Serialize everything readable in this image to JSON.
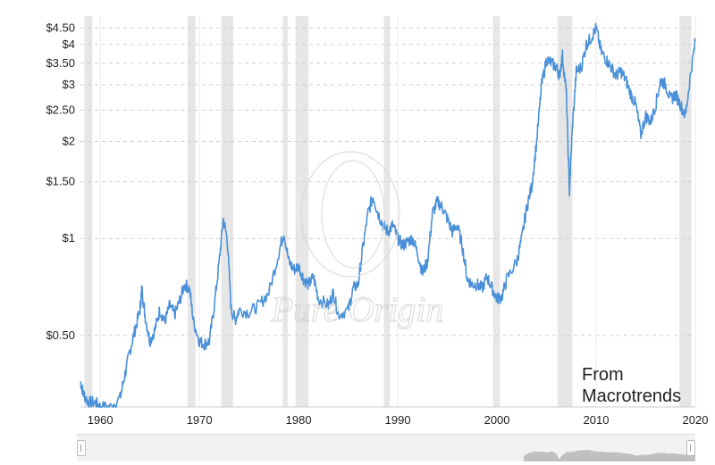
{
  "chart_data": {
    "type": "line",
    "title": "",
    "xlabel": "",
    "ylabel": "",
    "y_scale": "log",
    "xlim": [
      1958,
      2020
    ],
    "ylim": [
      0.3,
      4.9
    ],
    "y_ticks": [
      {
        "value": 0.5,
        "label": "$0.50"
      },
      {
        "value": 1,
        "label": "$1"
      },
      {
        "value": 1.5,
        "label": "$1.50"
      },
      {
        "value": 2,
        "label": "$2"
      },
      {
        "value": 2.5,
        "label": "$2.50"
      },
      {
        "value": 3,
        "label": "$3"
      },
      {
        "value": 3.5,
        "label": "$3.50"
      },
      {
        "value": 4,
        "label": "$4"
      },
      {
        "value": 4.5,
        "label": "$4.50"
      }
    ],
    "x_ticks": [
      {
        "value": 1960,
        "label": "1960"
      },
      {
        "value": 1970,
        "label": "1970"
      },
      {
        "value": 1980,
        "label": "1980"
      },
      {
        "value": 1990,
        "label": "1990"
      },
      {
        "value": 2000,
        "label": "2000"
      },
      {
        "value": 2010,
        "label": "2010"
      },
      {
        "value": 2020,
        "label": "2020"
      }
    ],
    "grid": true,
    "shaded_periods": [
      [
        1958.4,
        1959.2
      ],
      [
        1968.8,
        1969.6
      ],
      [
        1972.2,
        1973.4
      ],
      [
        1978.4,
        1978.9
      ],
      [
        1979.7,
        1981.0
      ],
      [
        1988.6,
        1989.2
      ],
      [
        1999.6,
        2000.3
      ],
      [
        2006.1,
        2007.6
      ],
      [
        2018.4,
        2019.6
      ]
    ],
    "series": [
      {
        "name": "",
        "color": "#4a90d9",
        "points": [
          [
            1958.0,
            0.36
          ],
          [
            1958.3,
            0.33
          ],
          [
            1958.8,
            0.31
          ],
          [
            1959.5,
            0.31
          ],
          [
            1960.0,
            0.3
          ],
          [
            1961.0,
            0.3
          ],
          [
            1962.0,
            0.32
          ],
          [
            1962.5,
            0.38
          ],
          [
            1963.0,
            0.45
          ],
          [
            1963.5,
            0.52
          ],
          [
            1964.0,
            0.6
          ],
          [
            1964.2,
            0.7
          ],
          [
            1964.5,
            0.58
          ],
          [
            1965.0,
            0.48
          ],
          [
            1965.5,
            0.52
          ],
          [
            1966.0,
            0.6
          ],
          [
            1966.5,
            0.55
          ],
          [
            1967.0,
            0.62
          ],
          [
            1967.5,
            0.58
          ],
          [
            1968.0,
            0.64
          ],
          [
            1968.5,
            0.72
          ],
          [
            1969.0,
            0.7
          ],
          [
            1969.4,
            0.55
          ],
          [
            1970.0,
            0.48
          ],
          [
            1970.5,
            0.47
          ],
          [
            1971.0,
            0.48
          ],
          [
            1971.5,
            0.62
          ],
          [
            1972.0,
            0.85
          ],
          [
            1972.4,
            1.15
          ],
          [
            1972.8,
            1.0
          ],
          [
            1973.2,
            0.6
          ],
          [
            1973.6,
            0.56
          ],
          [
            1974.0,
            0.6
          ],
          [
            1975.0,
            0.59
          ],
          [
            1976.0,
            0.62
          ],
          [
            1977.0,
            0.68
          ],
          [
            1978.0,
            0.9
          ],
          [
            1978.5,
            1.05
          ],
          [
            1979.0,
            0.85
          ],
          [
            1979.5,
            0.8
          ],
          [
            1980.0,
            0.82
          ],
          [
            1980.5,
            0.75
          ],
          [
            1981.0,
            0.72
          ],
          [
            1981.5,
            0.76
          ],
          [
            1982.0,
            0.65
          ],
          [
            1983.0,
            0.62
          ],
          [
            1983.5,
            0.68
          ],
          [
            1984.0,
            0.58
          ],
          [
            1985.0,
            0.6
          ],
          [
            1985.5,
            0.7
          ],
          [
            1986.0,
            0.72
          ],
          [
            1986.5,
            0.95
          ],
          [
            1987.0,
            1.2
          ],
          [
            1987.5,
            1.35
          ],
          [
            1988.0,
            1.2
          ],
          [
            1988.5,
            1.1
          ],
          [
            1989.0,
            1.05
          ],
          [
            1989.5,
            1.1
          ],
          [
            1990.0,
            1.0
          ],
          [
            1990.5,
            0.95
          ],
          [
            1991.0,
            0.98
          ],
          [
            1991.5,
            1.0
          ],
          [
            1992.0,
            0.9
          ],
          [
            1992.5,
            0.78
          ],
          [
            1993.0,
            0.85
          ],
          [
            1993.5,
            1.2
          ],
          [
            1994.0,
            1.3
          ],
          [
            1994.5,
            1.25
          ],
          [
            1995.0,
            1.15
          ],
          [
            1995.5,
            1.05
          ],
          [
            1996.0,
            1.1
          ],
          [
            1996.5,
            0.95
          ],
          [
            1997.0,
            0.75
          ],
          [
            1997.5,
            0.72
          ],
          [
            1998.0,
            0.72
          ],
          [
            1998.5,
            0.7
          ],
          [
            1999.0,
            0.76
          ],
          [
            1999.5,
            0.7
          ],
          [
            2000.0,
            0.65
          ],
          [
            2000.5,
            0.66
          ],
          [
            2001.0,
            0.75
          ],
          [
            2002.0,
            0.85
          ],
          [
            2002.5,
            1.0
          ],
          [
            2003.0,
            1.25
          ],
          [
            2003.5,
            1.45
          ],
          [
            2004.0,
            2.0
          ],
          [
            2004.5,
            3.0
          ],
          [
            2005.0,
            3.6
          ],
          [
            2005.5,
            3.5
          ],
          [
            2006.0,
            3.4
          ],
          [
            2006.3,
            3.2
          ],
          [
            2006.6,
            3.7
          ],
          [
            2007.0,
            2.8
          ],
          [
            2007.3,
            1.4
          ],
          [
            2007.6,
            2.2
          ],
          [
            2008.0,
            3.3
          ],
          [
            2008.5,
            3.4
          ],
          [
            2009.0,
            4.0
          ],
          [
            2009.5,
            4.2
          ],
          [
            2010.0,
            4.5
          ],
          [
            2010.5,
            3.8
          ],
          [
            2011.0,
            3.6
          ],
          [
            2011.5,
            3.4
          ],
          [
            2012.0,
            3.2
          ],
          [
            2012.5,
            3.3
          ],
          [
            2013.0,
            3.1
          ],
          [
            2013.5,
            2.8
          ],
          [
            2014.0,
            2.6
          ],
          [
            2014.5,
            2.1
          ],
          [
            2015.0,
            2.4
          ],
          [
            2015.5,
            2.3
          ],
          [
            2016.0,
            2.6
          ],
          [
            2016.5,
            3.1
          ],
          [
            2017.0,
            3.0
          ],
          [
            2017.5,
            2.7
          ],
          [
            2018.0,
            2.8
          ],
          [
            2018.5,
            2.6
          ],
          [
            2019.0,
            2.4
          ],
          [
            2019.5,
            3.2
          ],
          [
            2020.0,
            4.1
          ]
        ]
      }
    ]
  },
  "source_label": {
    "line1": "From",
    "line2": "Macrotrends"
  },
  "watermark_text": "Pure Origin",
  "navigator": {
    "left_handle": "II",
    "right_handle": "II"
  }
}
